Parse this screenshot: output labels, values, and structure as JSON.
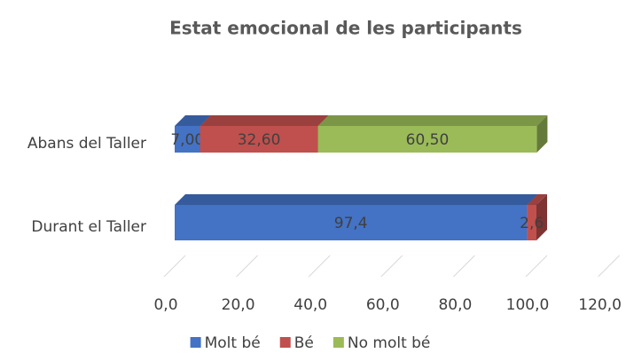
{
  "chart_data": {
    "type": "bar",
    "orientation": "horizontal",
    "stacked": true,
    "three_d": true,
    "title": "Estat emocional de les participants",
    "categories": [
      "Abans del Taller",
      "Durant el Taller"
    ],
    "series": [
      {
        "name": "Molt bé",
        "color": "#4472c4",
        "values": [
          7.0,
          97.4
        ],
        "value_labels": [
          "7,00",
          "97,4"
        ]
      },
      {
        "name": "Bé",
        "color": "#c0504d",
        "values": [
          32.6,
          2.6
        ],
        "value_labels": [
          "32,60",
          "2,6"
        ]
      },
      {
        "name": "No molt bé",
        "color": "#9bbb59",
        "values": [
          60.5,
          null
        ],
        "value_labels": [
          "60,50",
          null
        ]
      }
    ],
    "xlim": [
      0,
      120
    ],
    "xticks": [
      {
        "value": 0,
        "label": "0,0"
      },
      {
        "value": 20,
        "label": "20,0"
      },
      {
        "value": 40,
        "label": "40,0"
      },
      {
        "value": 60,
        "label": "60,0"
      },
      {
        "value": 80,
        "label": "80,0"
      },
      {
        "value": 100,
        "label": "100,0"
      },
      {
        "value": 120,
        "label": "120,0"
      }
    ],
    "grid": true,
    "legend": "bottom"
  }
}
